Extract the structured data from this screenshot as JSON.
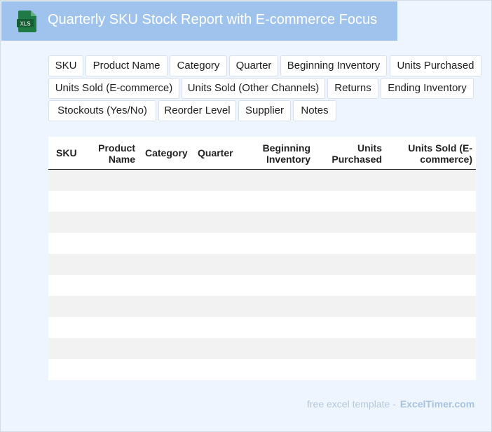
{
  "header": {
    "title": "Quarterly SKU Stock Report with E-commerce Focus",
    "icon_label": "XLS"
  },
  "chips": [
    "SKU",
    "Product Name",
    "Category",
    "Quarter",
    "Beginning Inventory",
    "Units Purchased",
    "Units Sold (E-commerce)",
    "Units Sold (Other Channels)",
    "Returns",
    "Ending Inventory",
    "Stockouts (Yes/No)",
    "Reorder Level",
    "Supplier",
    "Notes"
  ],
  "table": {
    "headers": {
      "sku": "SKU",
      "product_name_1": "Product",
      "product_name_2": "Name",
      "category": "Category",
      "quarter": "Quarter",
      "beginning_inventory_1": "Beginning",
      "beginning_inventory_2": "Inventory",
      "units_purchased_1": "Units",
      "units_purchased_2": "Purchased",
      "units_sold_ecom_1": "Units Sold (E-",
      "units_sold_ecom_2": "commerce)"
    },
    "row_count": 10
  },
  "footer": {
    "prefix": "free excel template -",
    "brand": "ExcelTimer.com"
  },
  "colors": {
    "header_bg": "#9fc3ed",
    "page_bg": "#eef5fe",
    "icon_green": "#1f7a45"
  }
}
